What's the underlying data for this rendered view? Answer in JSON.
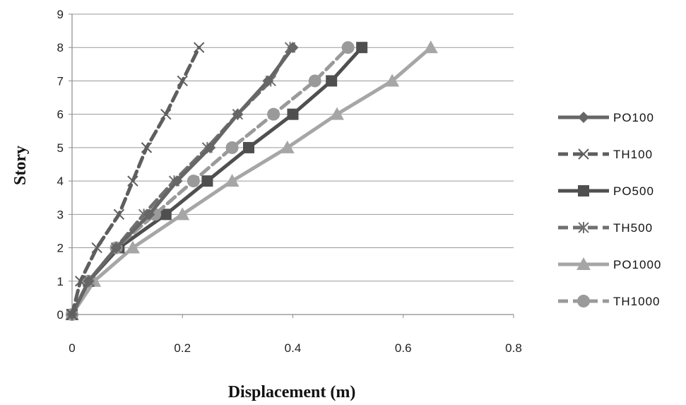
{
  "chart_data": {
    "type": "line",
    "xlabel": "Displacement (m)",
    "ylabel": "Story",
    "xlim": [
      0,
      0.8
    ],
    "ylim": [
      0,
      9
    ],
    "xticks": [
      "0",
      "0.2",
      "0.4",
      "0.6",
      "0.8"
    ],
    "yticks": [
      "0",
      "1",
      "2",
      "3",
      "4",
      "5",
      "6",
      "7",
      "8",
      "9"
    ],
    "grid": "horizontal",
    "legend_position": "right",
    "y": [
      0,
      1,
      2,
      3,
      4,
      5,
      6,
      7,
      8
    ],
    "series": [
      {
        "name": "PO100",
        "marker": "diamond",
        "dash": "solid",
        "color": "#666666",
        "x": [
          0,
          0.03,
          0.08,
          0.14,
          0.19,
          0.25,
          0.3,
          0.355,
          0.4
        ]
      },
      {
        "name": "TH100",
        "marker": "x",
        "dash": "dashed",
        "color": "#5e5e5e",
        "x": [
          0,
          0.015,
          0.045,
          0.085,
          0.11,
          0.135,
          0.17,
          0.2,
          0.23
        ]
      },
      {
        "name": "PO500",
        "marker": "square",
        "dash": "solid",
        "color": "#4f4f4f",
        "x": [
          0,
          0.03,
          0.085,
          0.17,
          0.245,
          0.32,
          0.4,
          0.47,
          0.525
        ]
      },
      {
        "name": "TH500",
        "marker": "star",
        "dash": "dashed",
        "color": "#707070",
        "x": [
          0,
          0.03,
          0.08,
          0.13,
          0.185,
          0.245,
          0.3,
          0.36,
          0.395
        ]
      },
      {
        "name": "PO1000",
        "marker": "triangle",
        "dash": "solid",
        "color": "#a6a6a6",
        "x": [
          0,
          0.04,
          0.11,
          0.2,
          0.29,
          0.39,
          0.48,
          0.58,
          0.65
        ]
      },
      {
        "name": "TH1000",
        "marker": "circle",
        "dash": "dashed",
        "color": "#9a9a9a",
        "x": [
          0,
          0.03,
          0.08,
          0.15,
          0.22,
          0.29,
          0.365,
          0.44,
          0.5
        ]
      }
    ]
  }
}
